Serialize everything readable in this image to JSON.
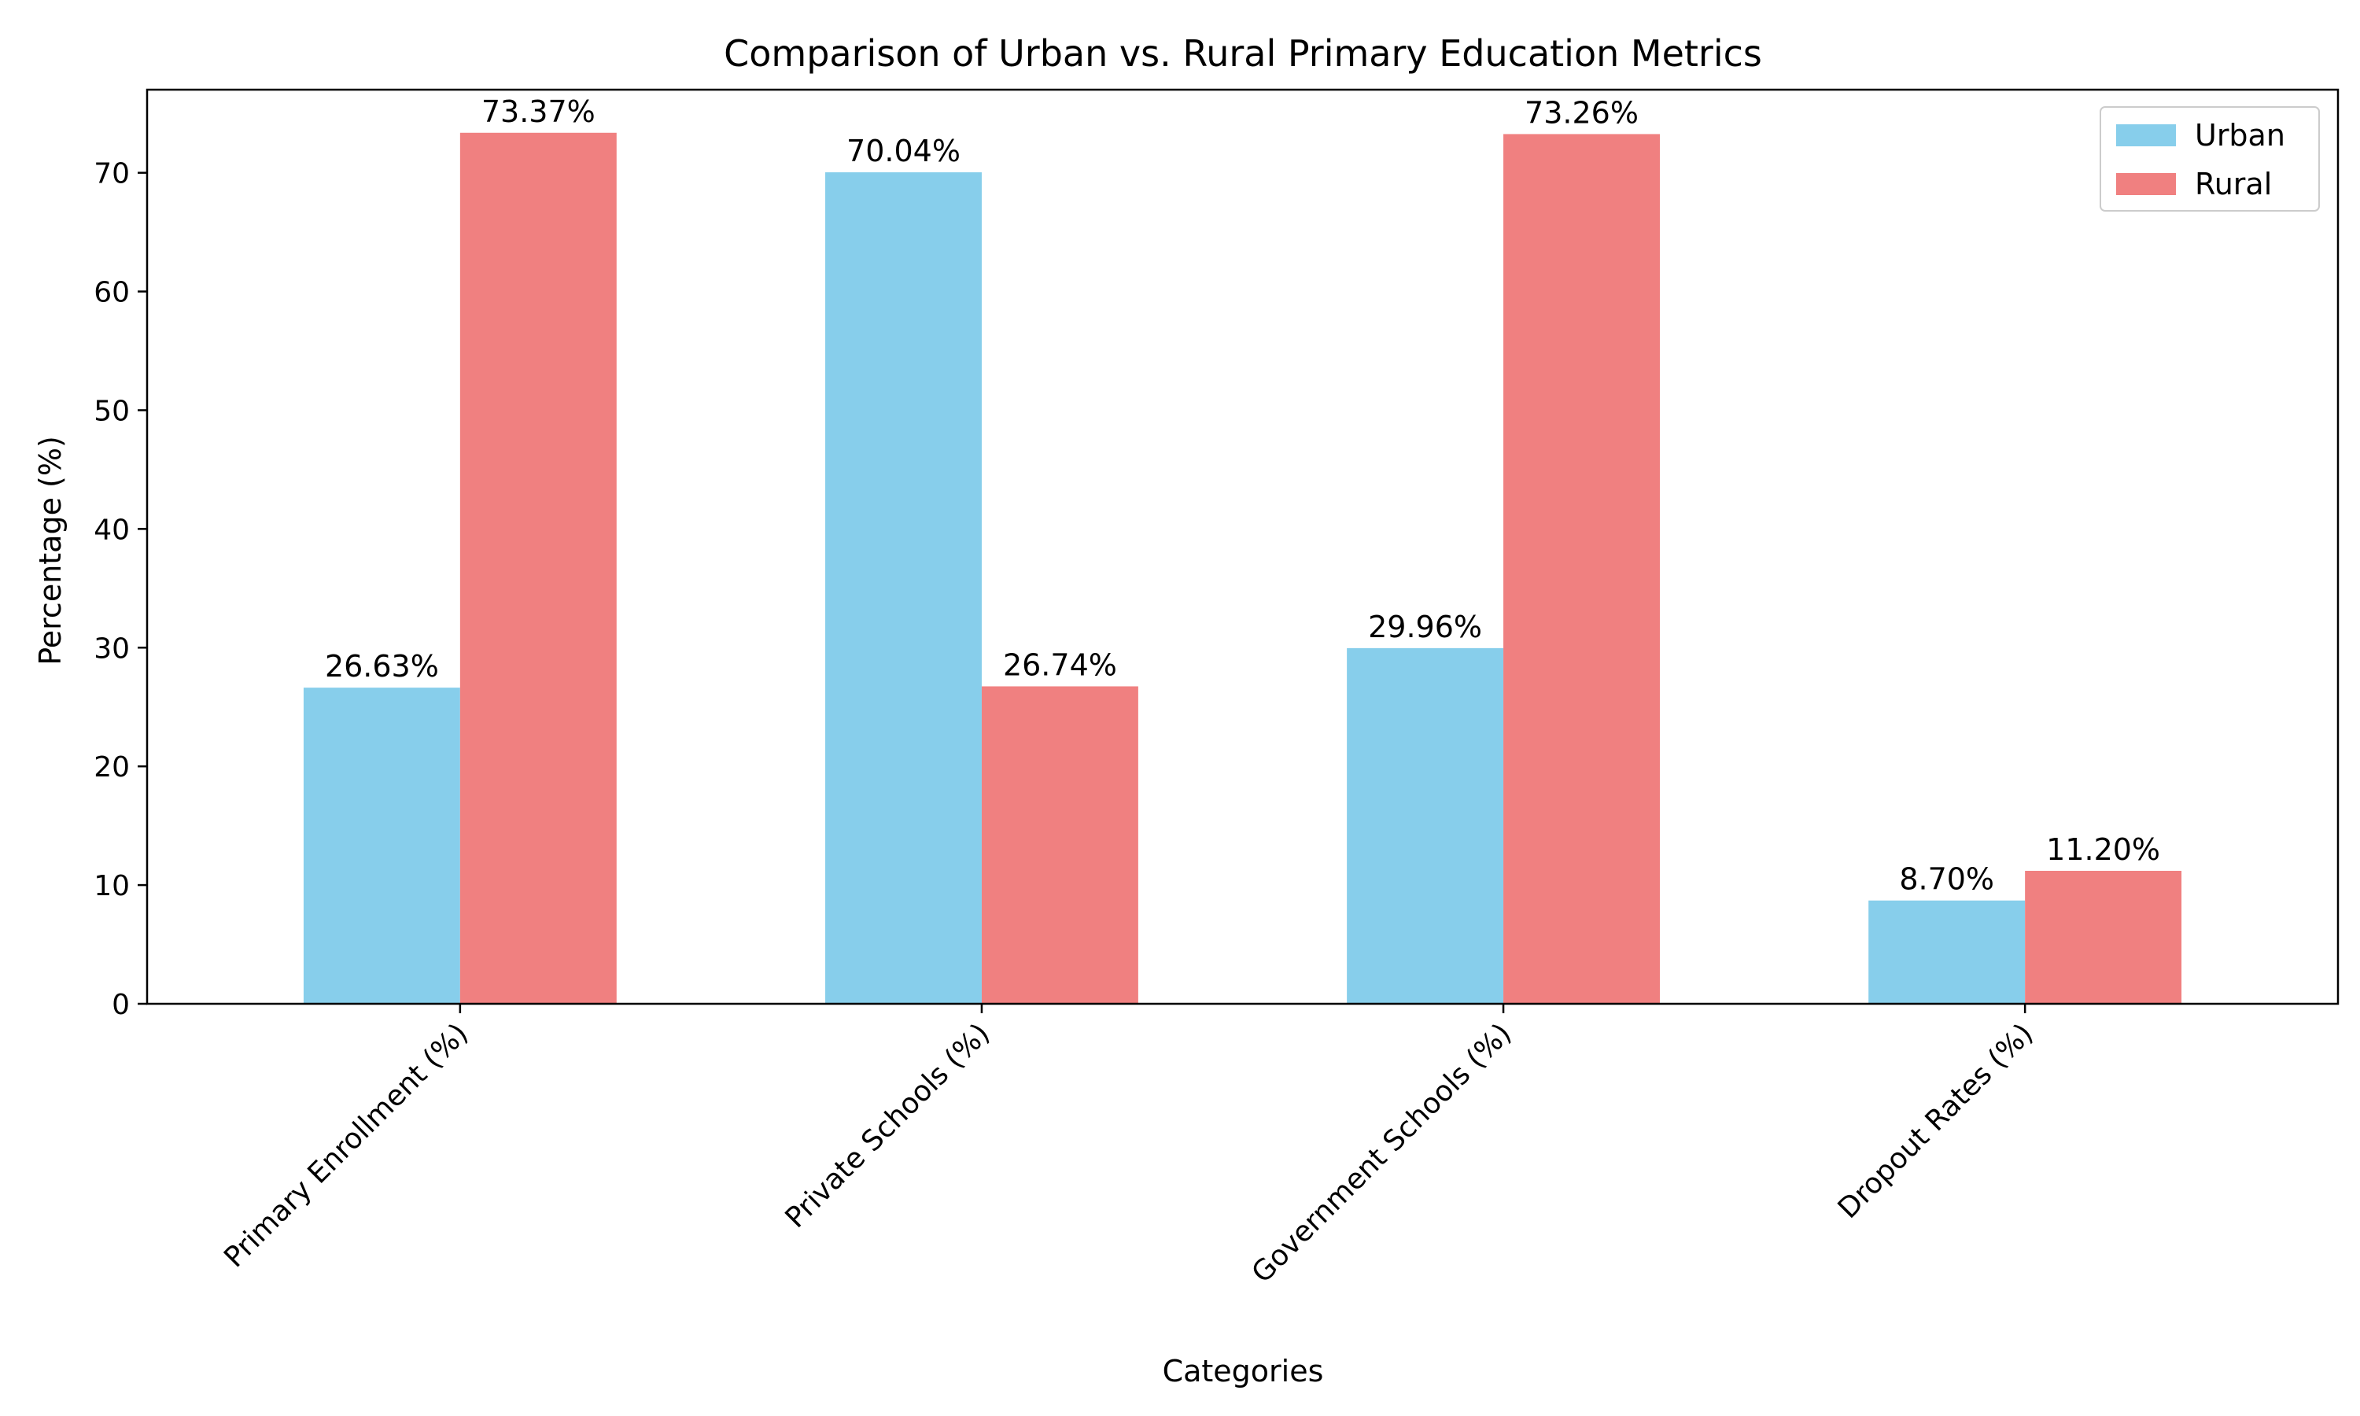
{
  "chart_data": {
    "type": "bar",
    "title": "Comparison of Urban vs. Rural Primary Education Metrics",
    "xlabel": "Categories",
    "ylabel": "Percentage (%)",
    "categories": [
      "Primary Enrollment (%)",
      "Private Schools (%)",
      "Government Schools (%)",
      "Dropout Rates (%)"
    ],
    "series": [
      {
        "name": "Urban",
        "color": "#87ceeb",
        "values": [
          26.63,
          70.04,
          29.96,
          8.7
        ],
        "labels": [
          "26.63%",
          "70.04%",
          "29.96%",
          "8.70%"
        ]
      },
      {
        "name": "Rural",
        "color": "#f08080",
        "values": [
          73.37,
          26.74,
          73.26,
          11.2
        ],
        "labels": [
          "73.37%",
          "26.74%",
          "73.26%",
          "11.20%"
        ]
      }
    ],
    "ylim": [
      0,
      77
    ],
    "yticks": [
      0,
      10,
      20,
      30,
      40,
      50,
      60,
      70
    ],
    "grid": false,
    "legend": "top-right"
  }
}
